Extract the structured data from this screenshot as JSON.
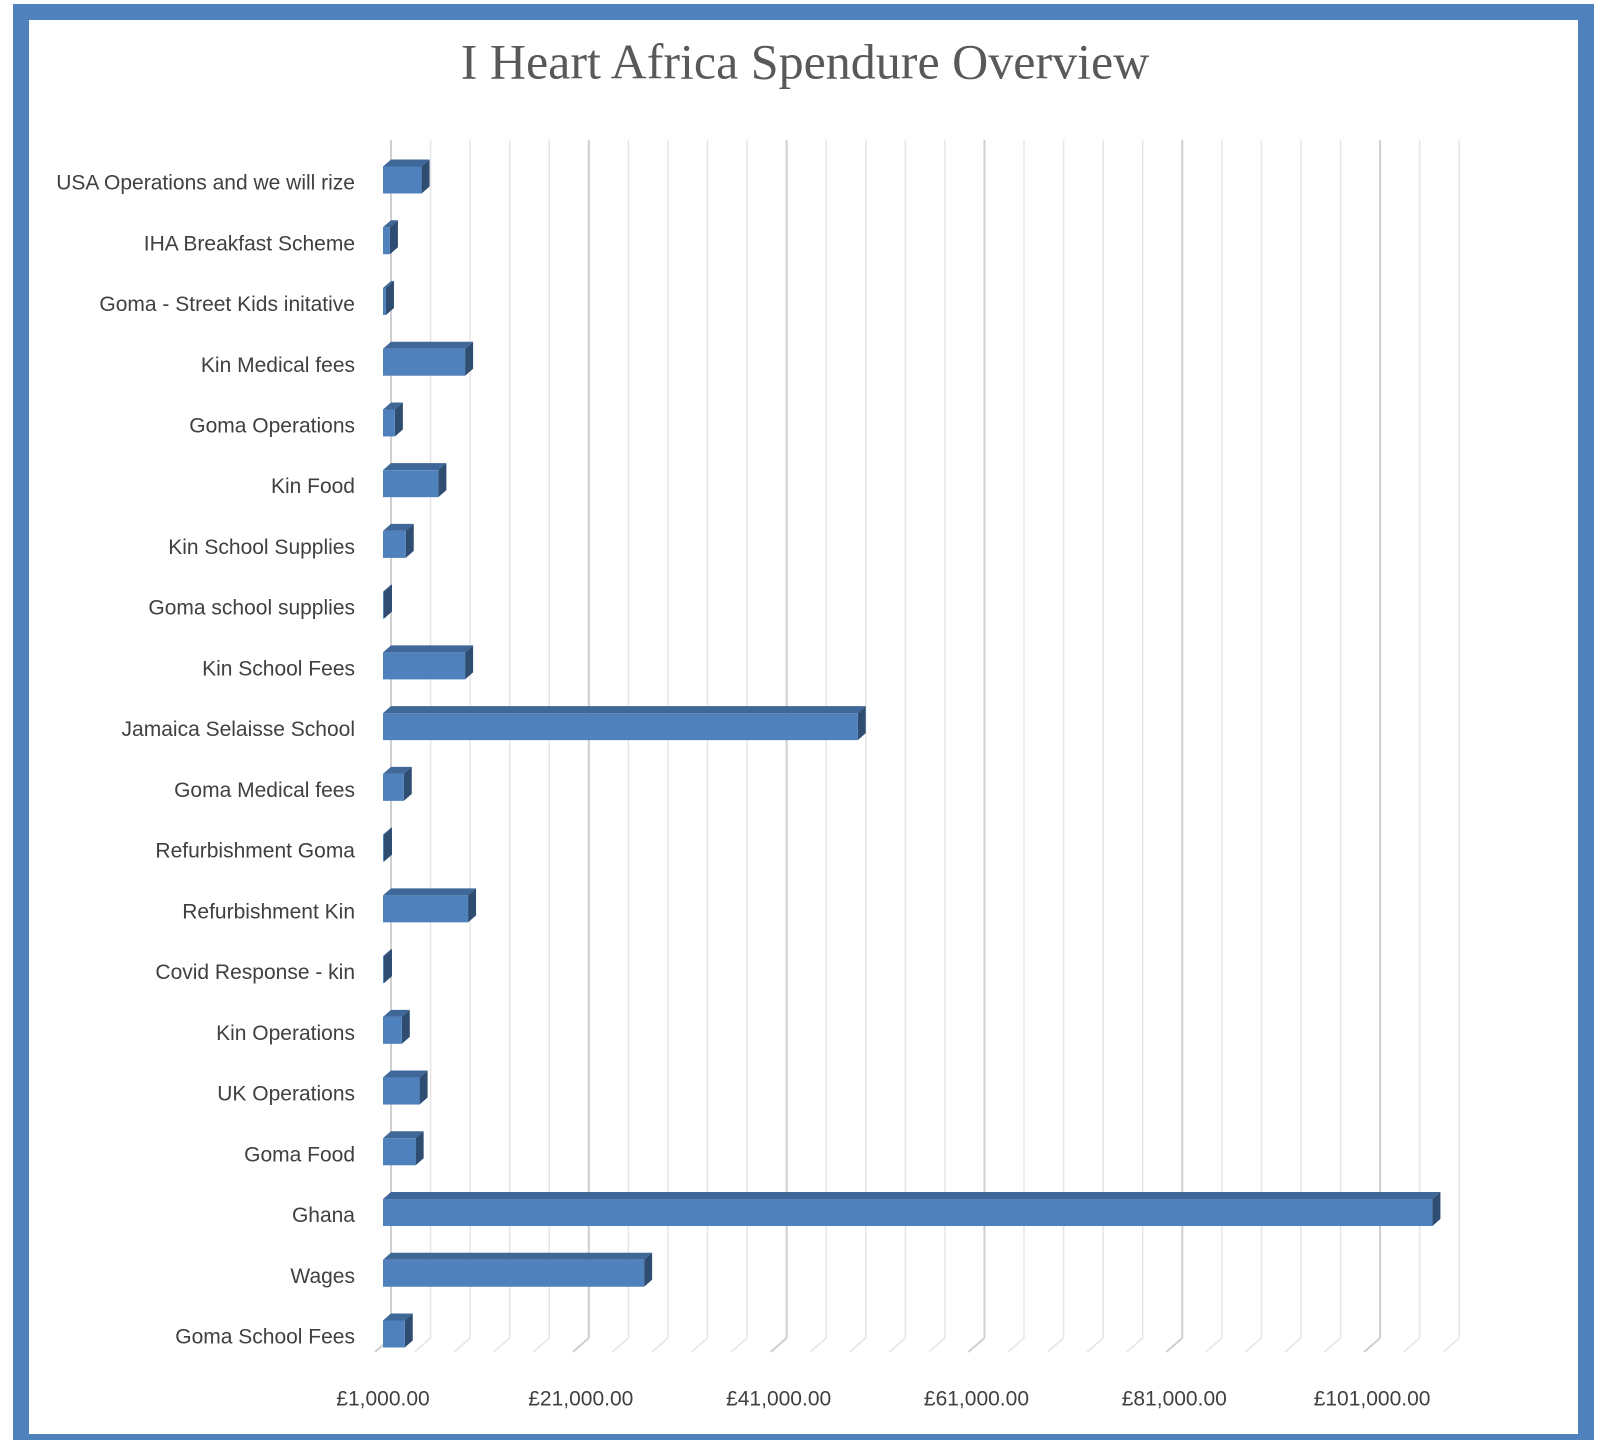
{
  "chart_data": {
    "type": "bar3d_horizontal",
    "title": "I Heart Africa Spendure Overview",
    "categories": [
      "USA Operations and we will rize",
      "IHA Breakfast Scheme",
      "Goma - Street Kids initative",
      "Kin Medical fees",
      "Goma Operations",
      "Kin Food",
      "Kin School Supplies",
      "Goma school supplies",
      "Kin School Fees",
      "Jamaica Selaisse School",
      "Goma Medical fees",
      "Refurbishment Goma",
      "Refurbishment Kin",
      "Covid Response - kin",
      "Kin Operations",
      "UK Operations",
      "Goma Food",
      "Ghana",
      "Wages",
      "Goma School Fees"
    ],
    "values": [
      4900,
      1700,
      1300,
      9300,
      2200,
      6600,
      3300,
      1100,
      9300,
      49000,
      3100,
      1100,
      9600,
      1100,
      2900,
      4700,
      4300,
      107100,
      27400,
      3200
    ],
    "color": "#4f81bd",
    "xlim": [
      1000,
      111000
    ],
    "xticks": [
      {
        "value": 1000,
        "label": "£1,000.00"
      },
      {
        "value": 21000,
        "label": "£21,000.00"
      },
      {
        "value": 41000,
        "label": "£41,000.00"
      },
      {
        "value": 61000,
        "label": "£61,000.00"
      },
      {
        "value": 81000,
        "label": "£81,000.00"
      },
      {
        "value": 101000,
        "label": "£101,000.00"
      }
    ],
    "grid": true
  }
}
